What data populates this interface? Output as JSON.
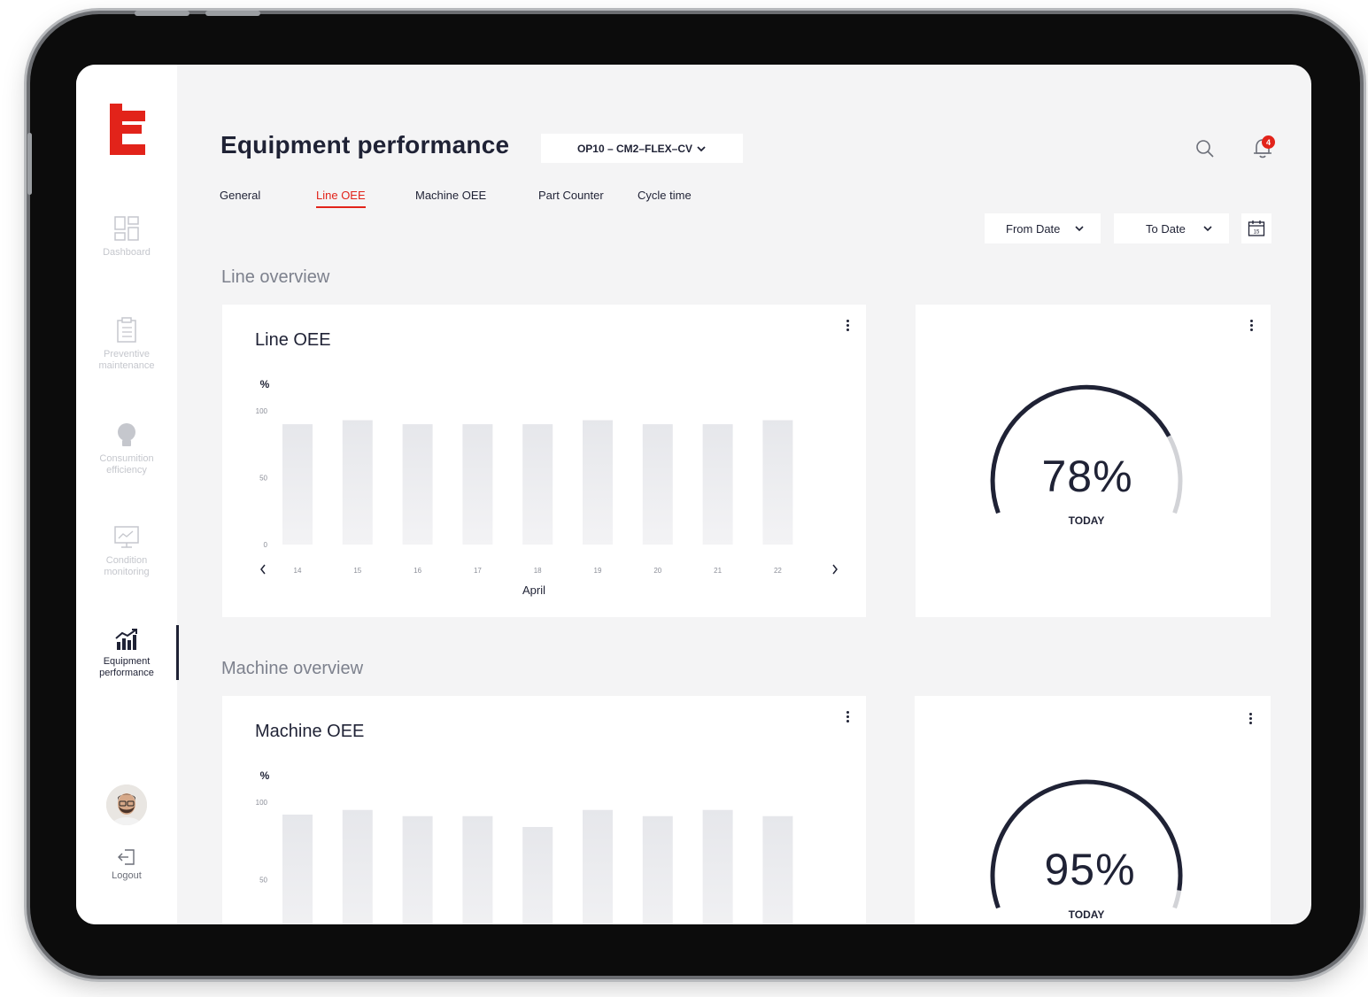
{
  "app": {
    "title": "Equipment performance",
    "machine_select": "OP10 – CM2–FLEX–CV",
    "notification_count": "4"
  },
  "sidebar": {
    "items": [
      {
        "label_line1": "Dashboard",
        "label_line2": "",
        "icon": "dashboard-icon"
      },
      {
        "label_line1": "Preventive",
        "label_line2": "maintenance",
        "icon": "clipboard-icon"
      },
      {
        "label_line1": "Consumition",
        "label_line2": "efficiency",
        "icon": "bulb-icon"
      },
      {
        "label_line1": "Condition",
        "label_line2": "monitoring",
        "icon": "monitor-icon"
      },
      {
        "label_line1": "Equipment",
        "label_line2": "performance",
        "icon": "chart-up-icon"
      }
    ],
    "logout_label": "Logout"
  },
  "tabs": [
    "General",
    "Line OEE",
    "Machine OEE",
    "Part Counter",
    "Cycle time"
  ],
  "active_tab": "Line OEE",
  "filters": {
    "from_date": "From Date",
    "to_date": "To Date",
    "calendar_day": "15"
  },
  "sections": {
    "line": "Line overview",
    "machine": "Machine overview"
  },
  "line_card": {
    "title": "Line OEE",
    "gauge_value": "78%",
    "gauge_label": "TODAY",
    "gauge_fraction": 0.78
  },
  "machine_card": {
    "title": "Machine OEE",
    "gauge_value": "95%",
    "gauge_label": "TODAY",
    "gauge_fraction": 0.95
  },
  "colors": {
    "accent": "#e2231a",
    "navy": "#1f2235",
    "bar": "#e6e7eb",
    "track": "#d2d3d7"
  },
  "chart_data": [
    {
      "type": "bar",
      "title": "Line OEE",
      "ylabel": "%",
      "xlabel": "April",
      "categories": [
        "14",
        "15",
        "16",
        "17",
        "18",
        "19",
        "20",
        "21",
        "22"
      ],
      "values": [
        90,
        93,
        90,
        90,
        90,
        93,
        90,
        90,
        93
      ],
      "yticks": [
        "100",
        "50",
        "0"
      ],
      "ylim": [
        0,
        100
      ],
      "grid": false
    },
    {
      "type": "bar",
      "title": "Machine OEE",
      "ylabel": "%",
      "categories": [
        "",
        "",
        "",
        "",
        "",
        "",
        "",
        "",
        ""
      ],
      "values": [
        92,
        95,
        91,
        91,
        84,
        95,
        91,
        95,
        91
      ],
      "yticks": [
        "100",
        "50"
      ],
      "ylim": [
        0,
        100
      ],
      "grid": false
    }
  ]
}
